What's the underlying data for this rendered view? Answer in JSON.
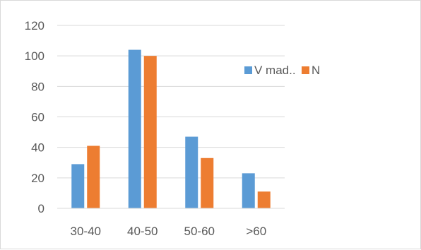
{
  "chart_data": {
    "type": "bar",
    "categories": [
      "30-40",
      "40-50",
      "50-60",
      ">60"
    ],
    "series": [
      {
        "name": "V mad..",
        "color": "#5b9bd5",
        "values": [
          29,
          104,
          47,
          23
        ]
      },
      {
        "name": "N",
        "color": "#ed7d31",
        "values": [
          41,
          100,
          33,
          11
        ]
      }
    ],
    "yticks": [
      0,
      20,
      40,
      60,
      80,
      100,
      120
    ],
    "ylim": [
      0,
      120
    ],
    "grid": true,
    "legend_position": "right"
  }
}
